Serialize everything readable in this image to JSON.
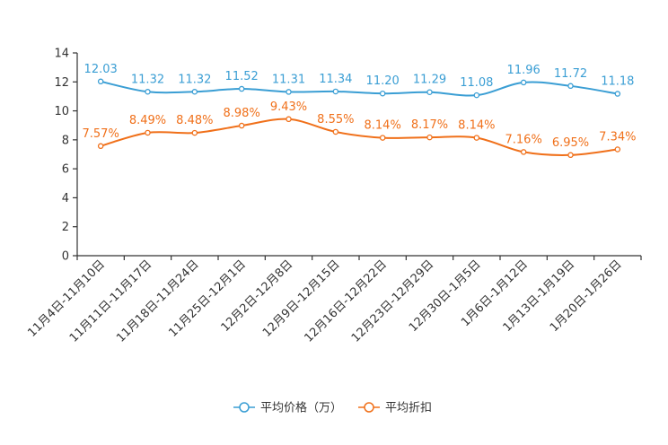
{
  "chart_data": {
    "type": "line",
    "categories": [
      "11月4日-11月10日",
      "11月11日-11月17日",
      "11月18日-11月24日",
      "11月25日-12月1日",
      "12月2日-12月8日",
      "12月9日-12月15日",
      "12月16日-12月22日",
      "12月23日-12月29日",
      "12月30日-1月5日",
      "1月6日-1月12日",
      "1月13日-1月19日",
      "1月20日-1月26日"
    ],
    "ylim": [
      0,
      14
    ],
    "yticks": [
      0,
      2,
      4,
      6,
      8,
      10,
      12,
      14
    ],
    "series": [
      {
        "name": "平均价格（万）",
        "color": "#3a9ed4",
        "values": [
          12.03,
          11.32,
          11.32,
          11.52,
          11.31,
          11.34,
          11.2,
          11.29,
          11.08,
          11.96,
          11.72,
          11.18
        ],
        "labels": [
          "12.03",
          "11.32",
          "11.32",
          "11.52",
          "11.31",
          "11.34",
          "11.20",
          "11.29",
          "11.08",
          "11.96",
          "11.72",
          "11.18"
        ]
      },
      {
        "name": "平均折扣",
        "color": "#f0701a",
        "values": [
          7.57,
          8.49,
          8.48,
          8.98,
          9.43,
          8.55,
          8.14,
          8.17,
          8.14,
          7.16,
          6.95,
          7.34
        ],
        "labels": [
          "7.57%",
          "8.49%",
          "8.48%",
          "8.98%",
          "9.43%",
          "8.55%",
          "8.14%",
          "8.17%",
          "8.14%",
          "7.16%",
          "6.95%",
          "7.34%"
        ]
      }
    ],
    "legend_position": "bottom-center"
  }
}
